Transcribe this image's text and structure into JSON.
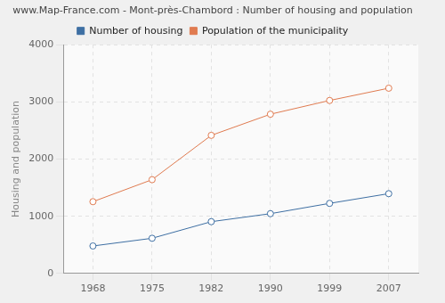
{
  "chart_data": {
    "type": "line",
    "title": "www.Map-France.com - Mont-près-Chambord : Number of housing and population",
    "y_label": "Housing and population",
    "categories": [
      "1968",
      "1975",
      "1982",
      "1990",
      "1999",
      "2007"
    ],
    "series": [
      {
        "name": "Number of housing",
        "color": "#3e6fa3",
        "values": [
          480,
          615,
          905,
          1045,
          1225,
          1395
        ]
      },
      {
        "name": "Population of the municipality",
        "color": "#e07b50",
        "values": [
          1255,
          1640,
          2415,
          2785,
          3025,
          3240
        ]
      }
    ],
    "ylim": [
      0,
      4000
    ],
    "yticks": [
      0,
      1000,
      2000,
      3000,
      4000
    ],
    "grid": true,
    "legend": "top",
    "marker": "circle"
  }
}
